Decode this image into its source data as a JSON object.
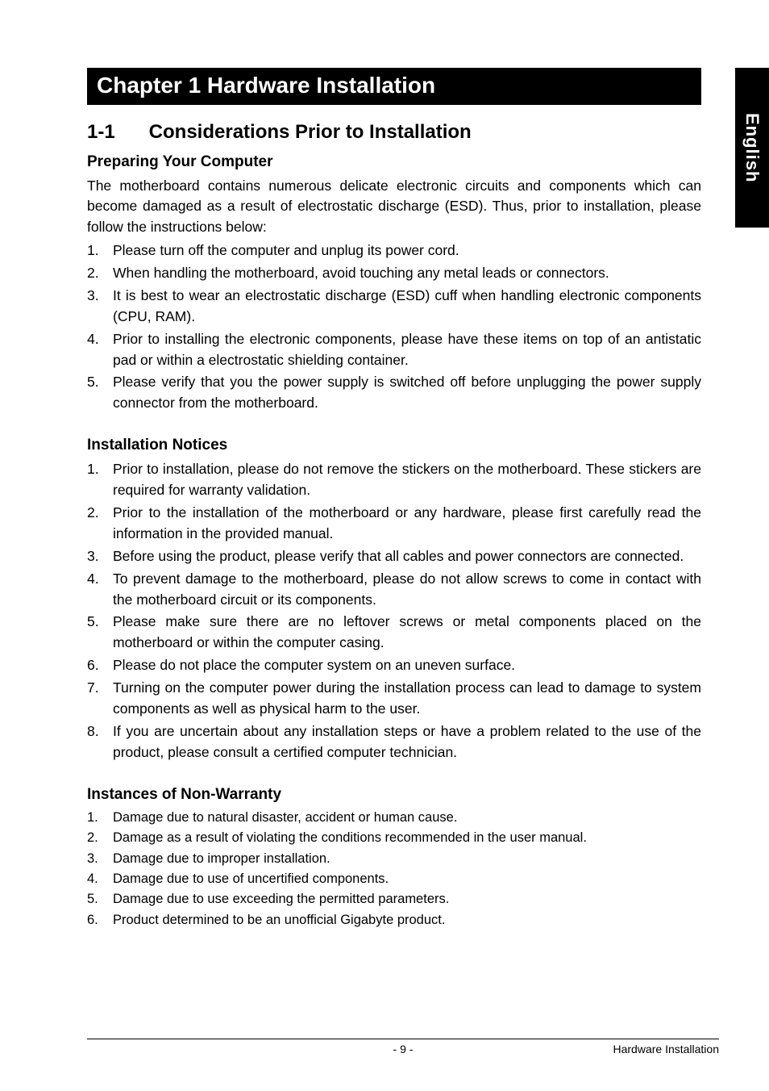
{
  "side_tab": "English",
  "chapter_bar": "Chapter 1 Hardware Installation",
  "section": {
    "num": "1-1",
    "title": "Considerations Prior to Installation"
  },
  "sub1": {
    "heading": "Preparing Your Computer",
    "para": "The motherboard contains numerous delicate electronic circuits and components which can become damaged as a result of electrostatic discharge (ESD).  Thus, prior to installation, please follow the instructions below:",
    "items": [
      "Please turn off the computer and unplug its power cord.",
      "When handling the motherboard, avoid touching any metal leads or connectors.",
      "It is best to wear an electrostatic discharge (ESD) cuff when handling electronic components (CPU, RAM).",
      "Prior to installing the electronic components, please have these items on top of an antistatic pad or within a electrostatic shielding container.",
      "Please verify that you the power supply is switched off before unplugging the power supply connector from the motherboard."
    ]
  },
  "sub2": {
    "heading": "Installation Notices",
    "items": [
      "Prior to installation, please do not remove the stickers on the motherboard.  These stickers are required for warranty validation.",
      "Prior to the installation of the motherboard or any hardware, please first carefully read the information in the provided manual.",
      "Before using the product, please verify that all cables and power connectors are connected.",
      "To prevent damage to the motherboard, please do not allow screws to come in contact with the motherboard circuit or its components.",
      "Please make sure there are no leftover screws or metal components placed on the motherboard or within the computer casing.",
      "Please do not place the computer system on an uneven surface.",
      "Turning on the computer power during the installation process can lead to damage to system components as well as physical harm to the user.",
      "If you are uncertain about any installation steps or have a problem related to the use of the product, please consult a certified computer technician."
    ]
  },
  "sub3": {
    "heading": "Instances of Non-Warranty",
    "items": [
      "Damage due to natural disaster, accident or human cause.",
      "Damage as a result of violating the conditions recommended in the user manual.",
      "Damage due to improper installation.",
      "Damage due to use of uncertified components.",
      "Damage due to use exceeding the permitted parameters.",
      "Product determined to be an unofficial Gigabyte product."
    ]
  },
  "footer": {
    "page": "- 9 -",
    "section": "Hardware Installation"
  }
}
